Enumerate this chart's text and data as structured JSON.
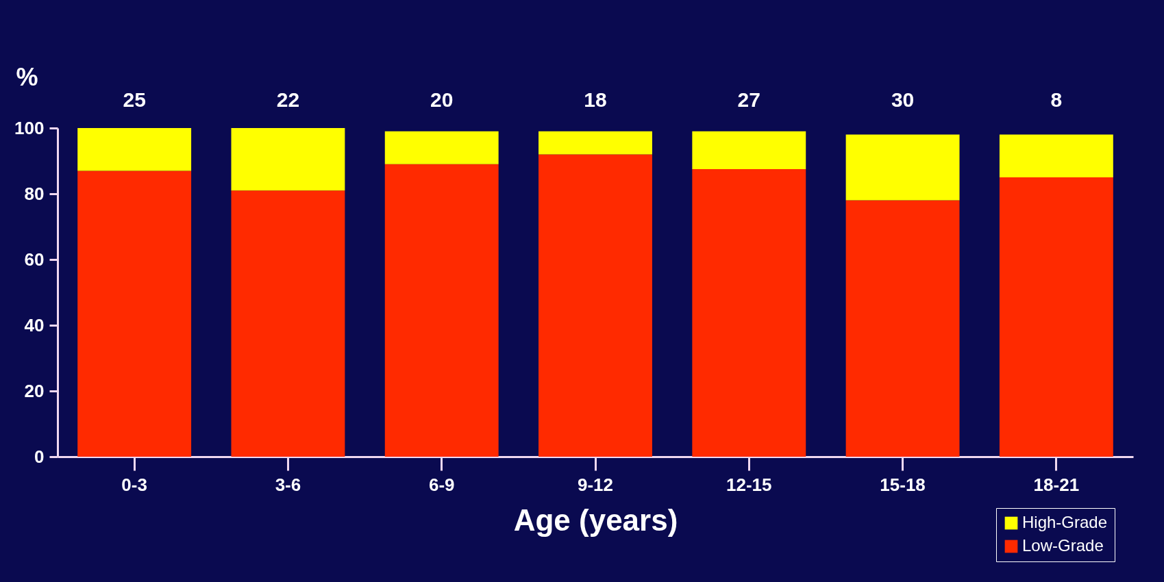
{
  "chart_data": {
    "type": "bar",
    "stacked": true,
    "xlabel": "Age (years)",
    "ylabel": "%",
    "categories": [
      "0-3",
      "3-6",
      "6-9",
      "9-12",
      "12-15",
      "15-18",
      "18-21"
    ],
    "series": [
      {
        "name": "Low-Grade",
        "color": "#ff2a00",
        "values": [
          87,
          81,
          89,
          92,
          87.5,
          78,
          85
        ]
      },
      {
        "name": "High-Grade",
        "color": "#ffff00",
        "values": [
          13,
          19,
          10,
          7,
          11.5,
          20,
          13
        ]
      }
    ],
    "ylim": [
      0,
      100
    ],
    "yticks": [
      0,
      20,
      40,
      60,
      80,
      100
    ],
    "grid": false,
    "legend": "bottom right",
    "annotations": [
      "25",
      "22",
      "20",
      "18",
      "27",
      "30",
      "8"
    ]
  }
}
